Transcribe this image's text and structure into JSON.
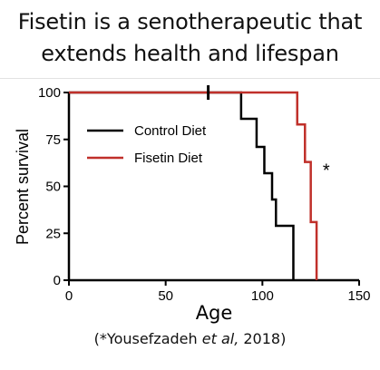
{
  "header": {
    "title_line1": "Fisetin is a senotherapeutic that",
    "title_line2": "extends health and lifespan"
  },
  "citation": {
    "prefix": "(*Yousefzadeh ",
    "italic": "et al,",
    "suffix": " 2018)"
  },
  "chart_data": {
    "type": "line",
    "step": true,
    "xlabel": "Age",
    "ylabel": "Percent survival",
    "xlim": [
      0,
      150
    ],
    "ylim": [
      0,
      100
    ],
    "xticks": [
      0,
      50,
      100,
      150
    ],
    "yticks": [
      0,
      25,
      50,
      75,
      100
    ],
    "grid": false,
    "legend_position": "top-left",
    "censor_mark_x": 72,
    "annotation": "*",
    "annotation_at": [
      133,
      63
    ],
    "series": [
      {
        "name": "Control Diet",
        "color": "#000000",
        "x": [
          0,
          89,
          97,
          101,
          105,
          107,
          109,
          116
        ],
        "y": [
          100,
          86,
          71,
          57,
          43,
          29,
          29,
          0
        ]
      },
      {
        "name": "Fisetin Diet",
        "color": "#c0302a",
        "x": [
          0,
          118,
          122,
          125,
          128
        ],
        "y": [
          100,
          83,
          63,
          31,
          0
        ]
      }
    ]
  }
}
